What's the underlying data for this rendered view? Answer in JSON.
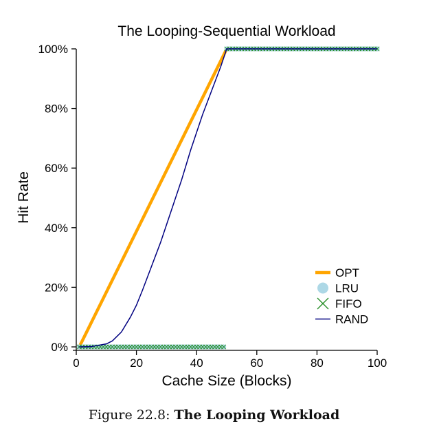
{
  "chart_data": {
    "type": "line",
    "title": "The Looping-Sequential Workload",
    "xlabel": "Cache Size (Blocks)",
    "ylabel": "Hit Rate",
    "xlim": [
      0,
      100
    ],
    "ylim": [
      0,
      100
    ],
    "xticks": [
      0,
      20,
      40,
      60,
      80,
      100
    ],
    "yticks": [
      0,
      20,
      40,
      60,
      80,
      100
    ],
    "ytick_labels": [
      "0%",
      "20%",
      "40%",
      "60%",
      "80%",
      "100%"
    ],
    "legend_position": "bottom-right",
    "series": [
      {
        "name": "OPT",
        "style": "thick-line",
        "color": "#FFA500",
        "x": [
          1,
          50,
          100
        ],
        "y": [
          0,
          100,
          100
        ]
      },
      {
        "name": "LRU",
        "style": "dots",
        "color": "#ADD8E6",
        "x_range": [
          1,
          100
        ],
        "y_rule": "0 for x < 50, 100 for x >= 50"
      },
      {
        "name": "FIFO",
        "style": "crosses",
        "color": "#228B22",
        "x_range": [
          1,
          100
        ],
        "y_rule": "0 for x < 50, 100 for x >= 50"
      },
      {
        "name": "RAND",
        "style": "thin-line",
        "color": "#000080",
        "x": [
          1,
          5,
          10,
          12,
          15,
          18,
          20,
          22,
          25,
          28,
          30,
          32,
          35,
          38,
          40,
          42,
          45,
          48,
          50,
          60,
          70,
          80,
          90,
          100
        ],
        "y": [
          0,
          0.1,
          1,
          2,
          5,
          10,
          14,
          19,
          27,
          35,
          41,
          47,
          56,
          66,
          72,
          78,
          86,
          94,
          100,
          100,
          100,
          100,
          100,
          100
        ]
      }
    ]
  },
  "caption": {
    "prefix": "Figure 22.8: ",
    "bold": "The Looping Workload"
  }
}
